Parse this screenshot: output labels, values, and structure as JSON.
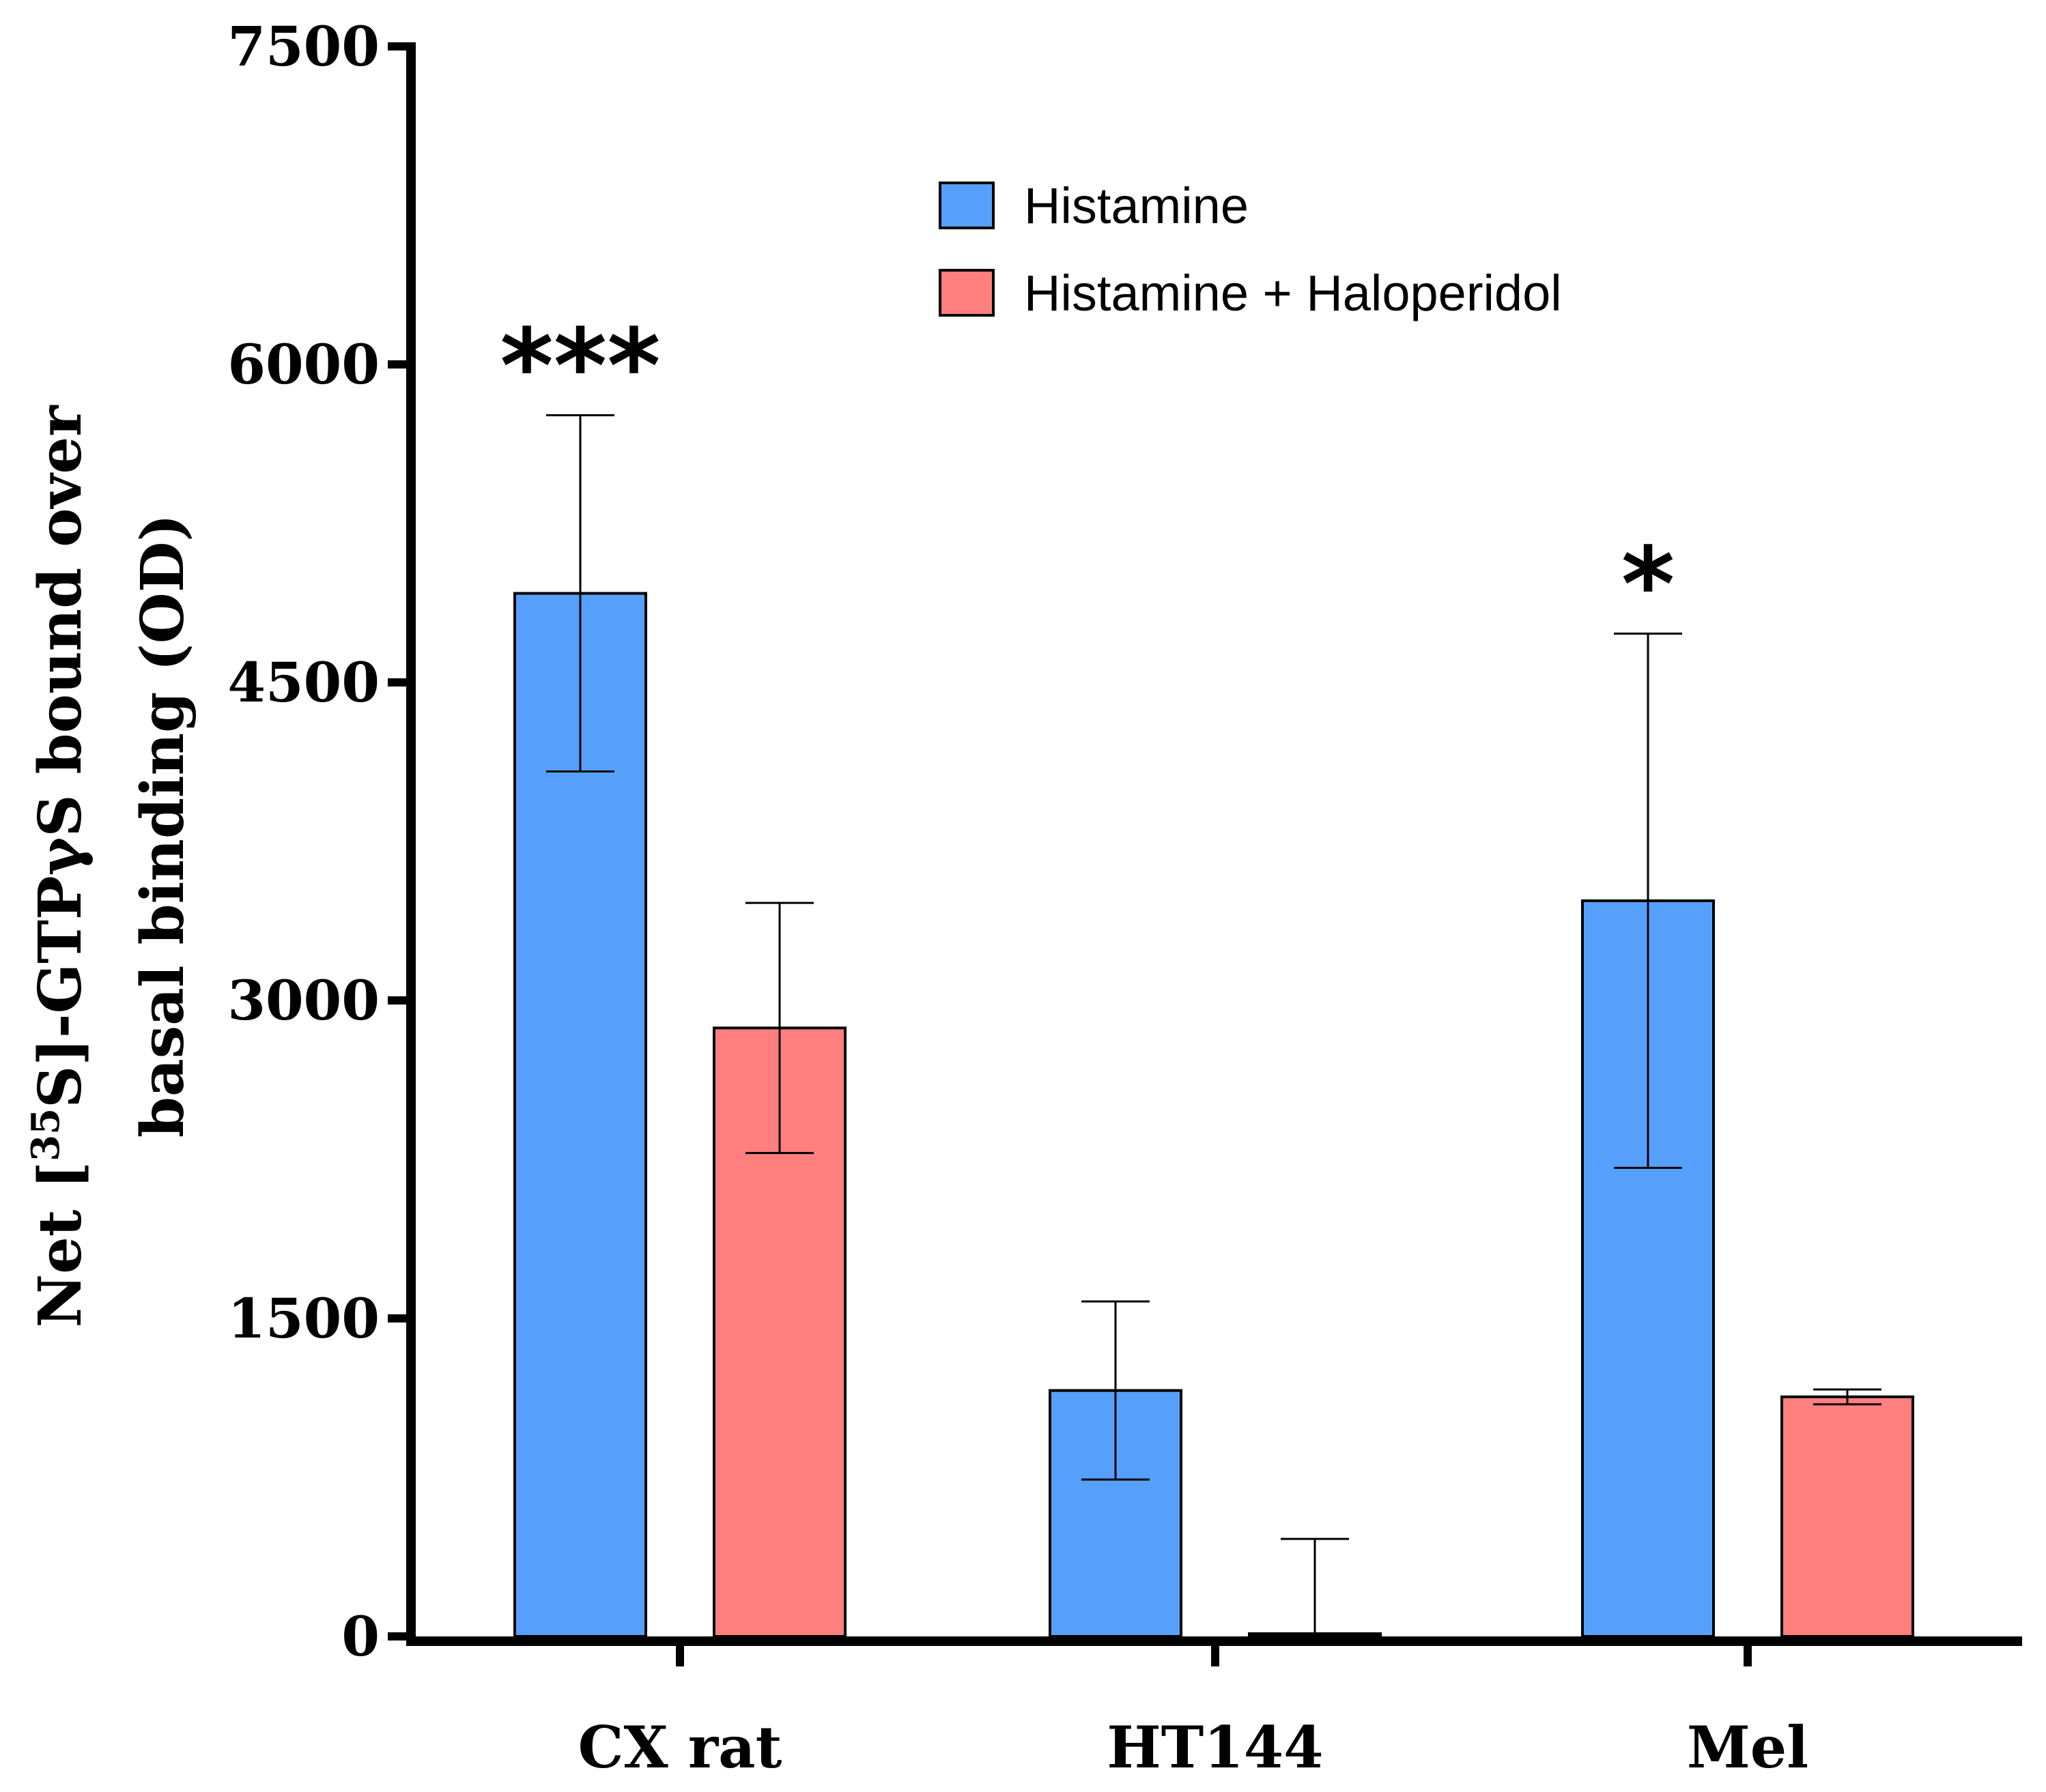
{
  "chart_data": {
    "type": "bar",
    "title": "",
    "xlabel": "",
    "ylabel_line1": "Net [",
    "ylabel_sup": "35",
    "ylabel_line1_rest": "S]-GTPγS bound over",
    "ylabel_line2": "basal binding (OD)",
    "categories": [
      "CX rat",
      "HT144",
      "Mel"
    ],
    "ylim": [
      0,
      7500
    ],
    "yticks": [
      "0",
      "1500",
      "3000",
      "4500",
      "6000",
      "7500"
    ],
    "ytick_values": [
      0,
      1500,
      3000,
      4500,
      6000,
      7500
    ],
    "series": [
      {
        "name": "Histamine",
        "color": "#56A0FB",
        "values": [
          4920,
          1160,
          3470
        ],
        "errors": [
          840,
          420,
          1260
        ],
        "significance": [
          "***",
          "",
          "*"
        ]
      },
      {
        "name": "Histamine + Haloperidol",
        "color": "#FF7F7F",
        "values": [
          2870,
          0,
          1130
        ],
        "errors": [
          590,
          460,
          35
        ],
        "significance": [
          "",
          "",
          ""
        ]
      }
    ],
    "legend_position": "top-right"
  }
}
